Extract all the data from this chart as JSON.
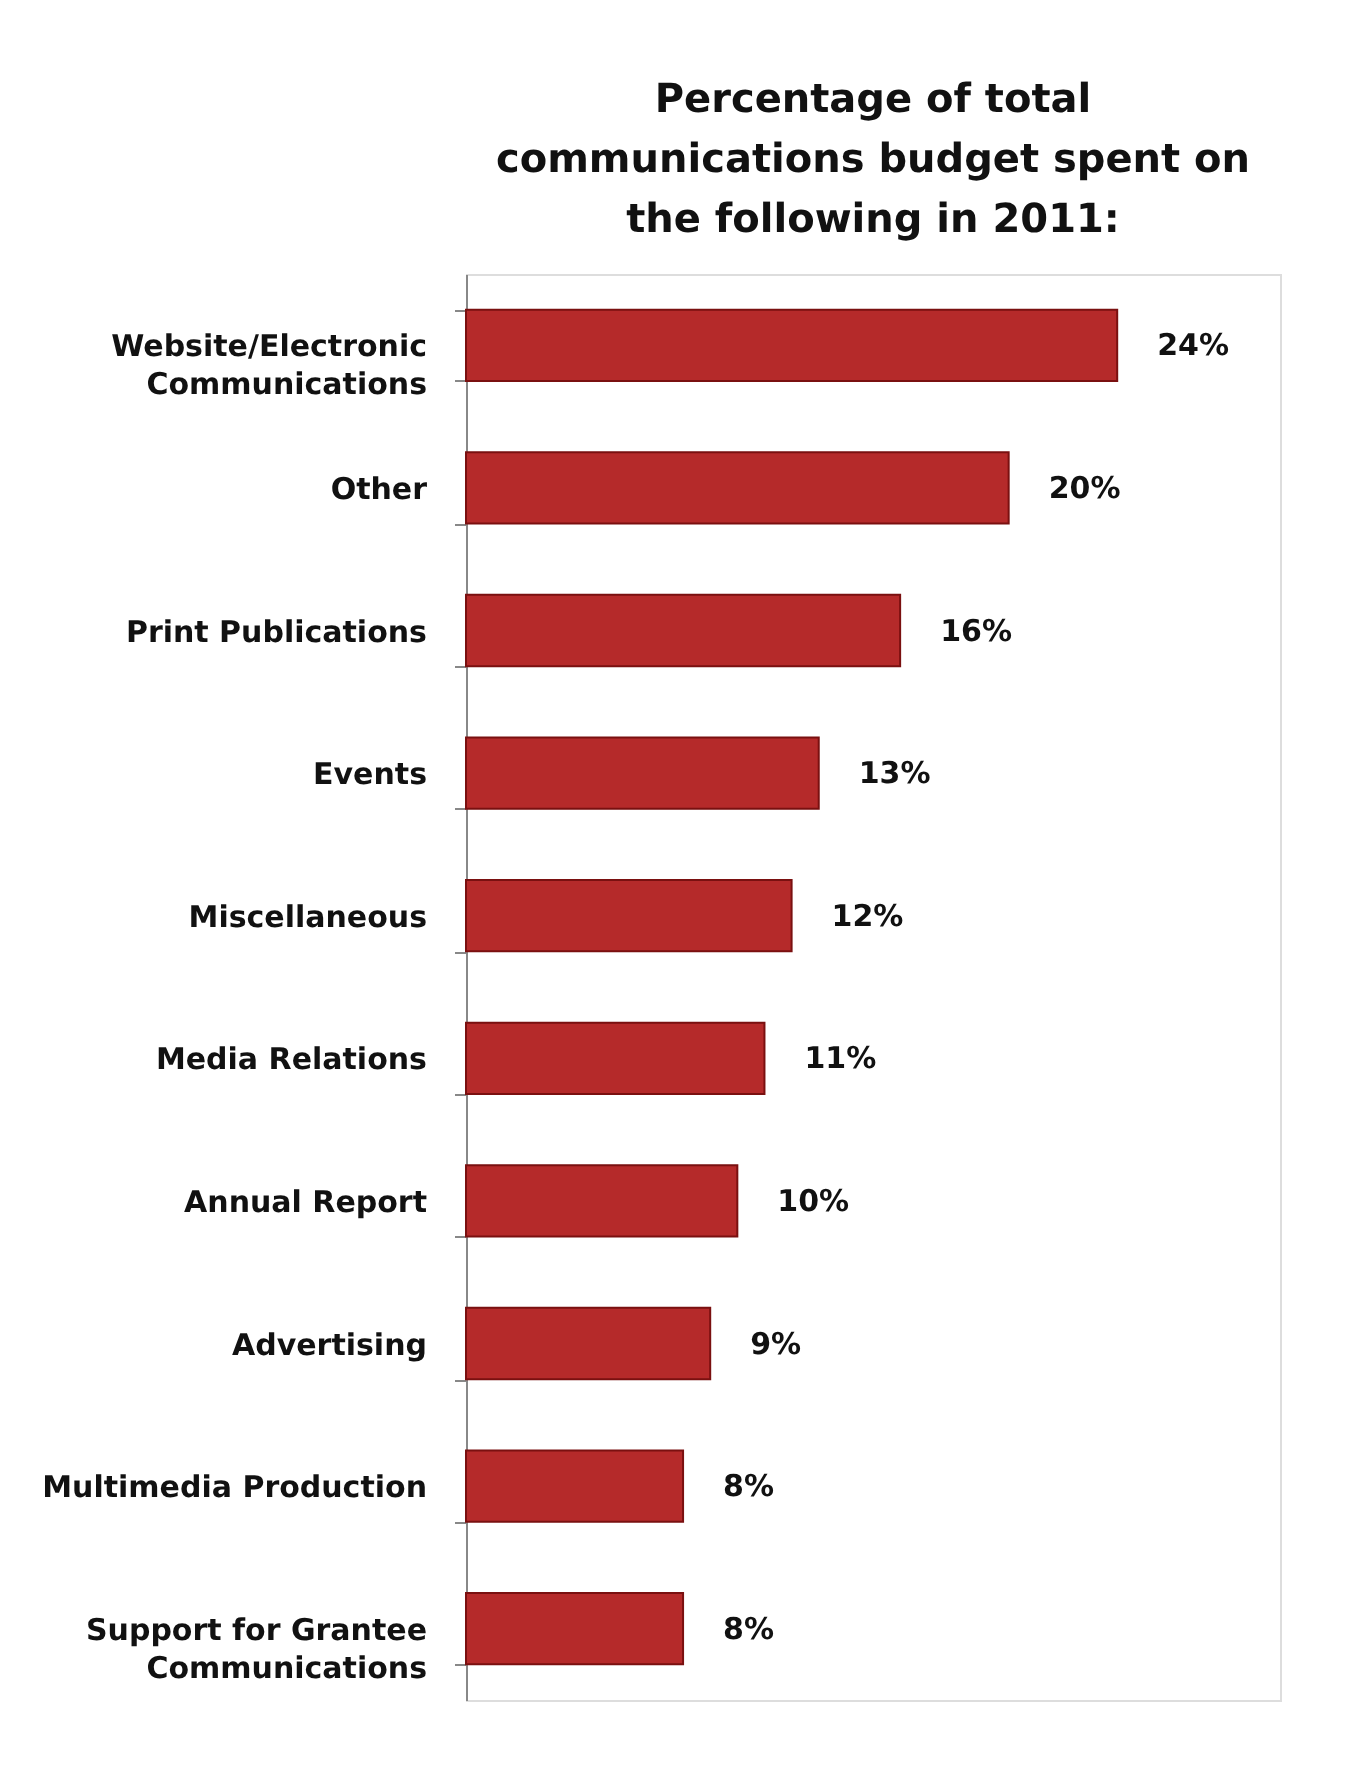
{
  "chart_data": {
    "type": "bar",
    "orientation": "horizontal",
    "title": "Percentage of total\ncommunications budget spent on\nthe following in 2011:",
    "categories": [
      "Website/Electronic\nCommunications",
      "Other",
      "Print Publications",
      "Events",
      "Miscellaneous",
      "Media Relations",
      "Annual Report",
      "Advertising",
      "Multimedia Production",
      "Support for Grantee\nCommunications"
    ],
    "values": [
      24,
      20,
      16,
      13,
      12,
      11,
      10,
      9,
      8,
      8
    ],
    "value_labels": [
      "24%",
      "20%",
      "16%",
      "13%",
      "12%",
      "11%",
      "10%",
      "9%",
      "8%",
      "8%"
    ],
    "color": "#b52a2a",
    "grid": false
  }
}
